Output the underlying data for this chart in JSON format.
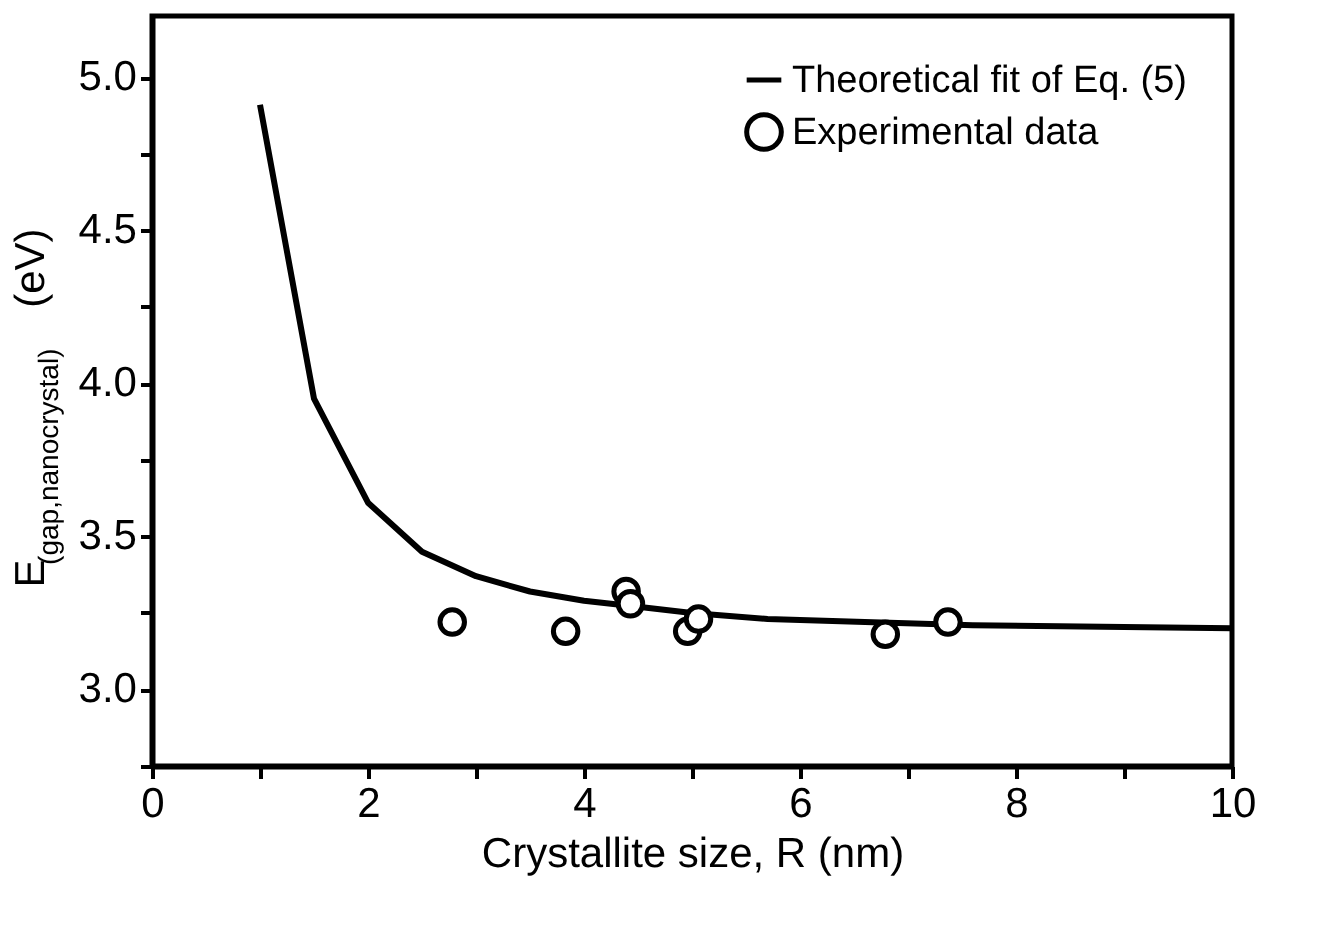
{
  "chart_data": {
    "type": "line",
    "xlabel": "Crystallite size, R (nm)",
    "ylabel": "E$_{(gap,nanocrystal)}$ (eV)",
    "xlim": [
      0,
      10
    ],
    "ylim": [
      2.75,
      5.2
    ],
    "xticks": [
      0,
      {
        "value": 1,
        "label": null
      },
      2,
      {
        "value": 3,
        "label": null
      },
      4,
      {
        "value": 5,
        "label": null
      },
      6,
      {
        "value": 7,
        "label": null
      },
      8,
      {
        "value": 9,
        "label": null
      },
      10
    ],
    "yticks": [
      {
        "value": 2.75,
        "label": null
      },
      {
        "value": 3,
        "label": "3.0"
      },
      {
        "value": 3.25,
        "label": null
      },
      {
        "value": 3.5,
        "label": "3.5"
      },
      {
        "value": 3.75,
        "label": null
      },
      {
        "value": 4,
        "label": "4.0"
      },
      {
        "value": 4.25,
        "label": null
      },
      {
        "value": 4.5,
        "label": "4.5"
      },
      {
        "value": 4.75,
        "label": null
      },
      {
        "value": 5,
        "label": "5.0"
      }
    ],
    "legend": "top right",
    "grid": false,
    "series": [
      {
        "name": "Theoretical fit of Eq. (5)",
        "color": "#000000",
        "line_style": "solid",
        "x": [
          1.0,
          1.5,
          2.0,
          2.5,
          3.0,
          3.5,
          4.0,
          4.5,
          5.0,
          5.7,
          6.6,
          7.6,
          10.0
        ],
        "values": [
          4.91,
          3.95,
          3.61,
          3.45,
          3.37,
          3.32,
          3.29,
          3.27,
          3.25,
          3.23,
          3.22,
          3.21,
          3.2
        ]
      },
      {
        "name": "Experimental data",
        "type": "scatter",
        "color": "#000000",
        "marker": "circle",
        "x": [
          2.78,
          3.83,
          4.39,
          4.43,
          4.96,
          5.06,
          6.79,
          7.37
        ],
        "values": [
          3.22,
          3.19,
          3.32,
          3.28,
          3.19,
          3.23,
          3.18,
          3.22
        ]
      }
    ]
  }
}
